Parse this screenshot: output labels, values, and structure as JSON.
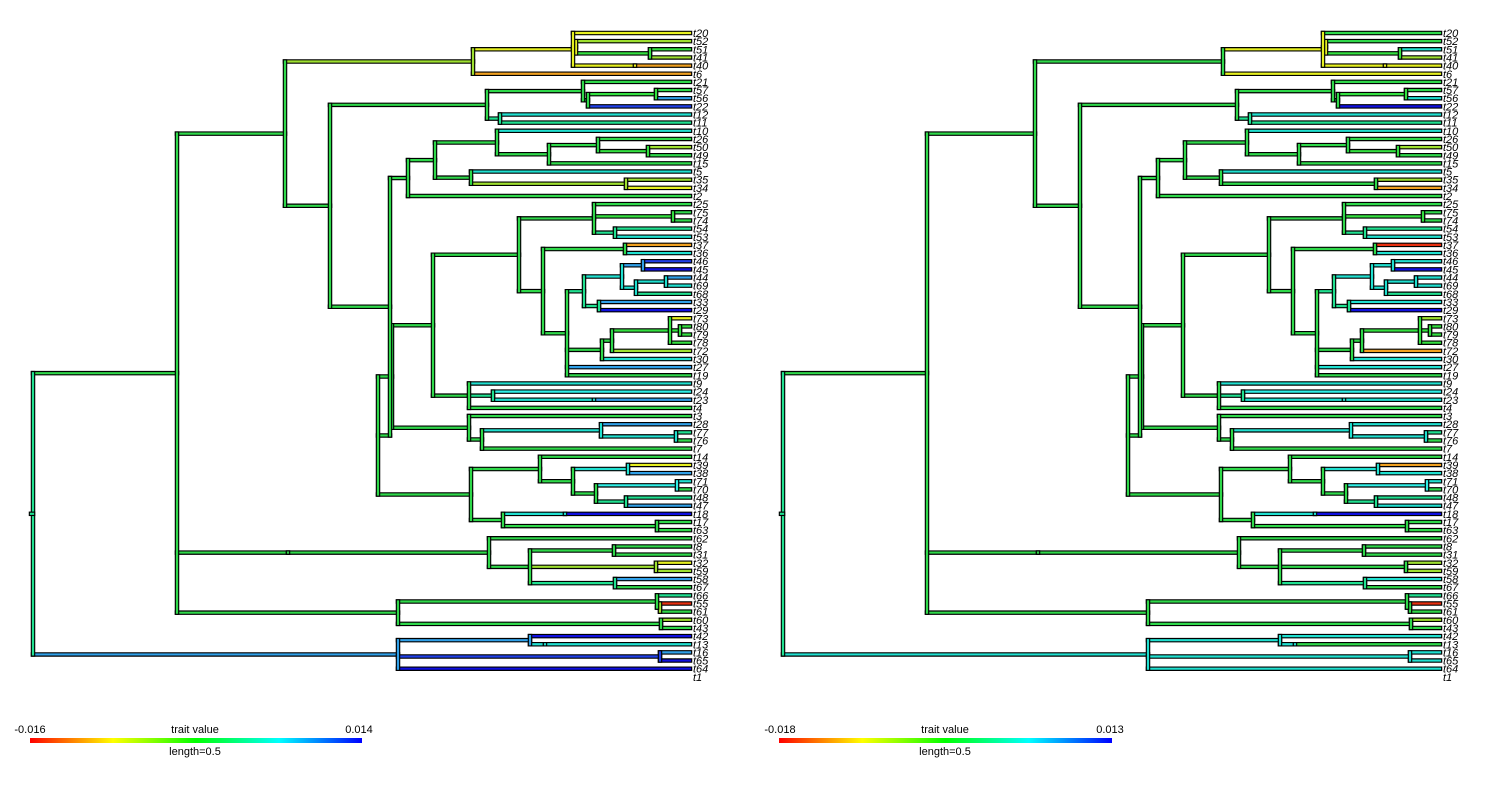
{
  "tip_labels": [
    "t20",
    "t52",
    "t51",
    "t41",
    "t40",
    "t6",
    "t21",
    "t57",
    "t56",
    "t22",
    "t12",
    "t11",
    "t10",
    "t26",
    "t50",
    "t49",
    "t15",
    "t5",
    "t35",
    "t34",
    "t2",
    "t25",
    "t75",
    "t74",
    "t54",
    "t53",
    "t37",
    "t36",
    "t46",
    "t45",
    "t44",
    "t69",
    "t68",
    "t33",
    "t29",
    "t73",
    "t80",
    "t79",
    "t78",
    "t72",
    "t30",
    "t27",
    "t19",
    "t9",
    "t24",
    "t23",
    "t4",
    "t3",
    "t28",
    "t77",
    "t76",
    "t7",
    "t14",
    "t39",
    "t38",
    "t71",
    "t70",
    "t48",
    "t47",
    "t18",
    "t17",
    "t63",
    "t62",
    "t8",
    "t31",
    "t32",
    "t59",
    "t58",
    "t67",
    "t66",
    "t55",
    "t61",
    "t60",
    "t43",
    "t42",
    "t13",
    "t16",
    "t65",
    "t64",
    "t1"
  ],
  "panels": [
    {
      "name": "left",
      "legend": {
        "min_label": "-0.016",
        "max_label": "0.014",
        "title": "trait value",
        "length_label": "length=0.5"
      }
    },
    {
      "name": "right",
      "legend": {
        "min_label": "-0.018",
        "max_label": "0.013",
        "title": "trait value",
        "length_label": "length=0.5"
      }
    }
  ],
  "colors": {
    "scale": [
      "#ff0000",
      "#ffff00",
      "#00ff00",
      "#00ffff",
      "#0000ff"
    ],
    "outline": "#000000"
  }
}
